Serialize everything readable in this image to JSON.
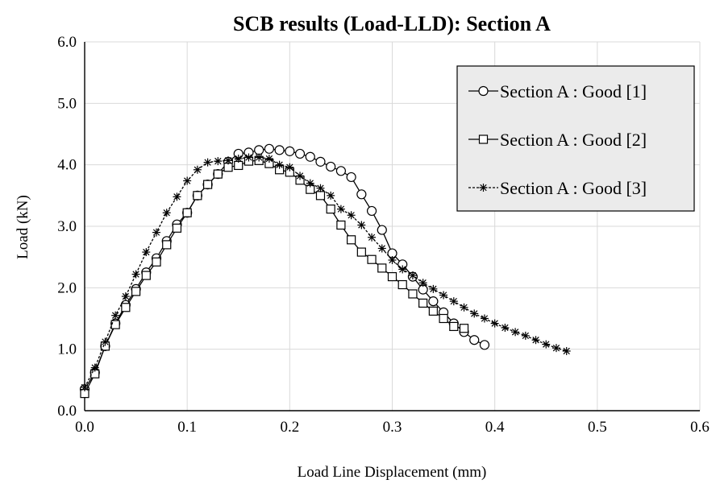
{
  "chart_data": {
    "type": "line",
    "title": "SCB results (Load-LLD): Section A",
    "xlabel": "Load Line Displacement (mm)",
    "ylabel": "Load (kN)",
    "xlim": [
      0,
      0.6
    ],
    "ylim": [
      0,
      6
    ],
    "x_ticks": [
      "0.0",
      "0.1",
      "0.2",
      "0.3",
      "0.4",
      "0.5",
      "0.6"
    ],
    "y_ticks": [
      "0.0",
      "1.0",
      "2.0",
      "3.0",
      "4.0",
      "5.0",
      "6.0"
    ],
    "x_tick_values": [
      0,
      0.1,
      0.2,
      0.3,
      0.4,
      0.5,
      0.6
    ],
    "y_tick_values": [
      0,
      1,
      2,
      3,
      4,
      5,
      6
    ],
    "grid": true,
    "legend_position": "top-right",
    "series": [
      {
        "name": "Section A : Good [1]",
        "marker": "circle",
        "line_style": "solid",
        "x": [
          0.0,
          0.01,
          0.02,
          0.03,
          0.04,
          0.05,
          0.06,
          0.07,
          0.08,
          0.09,
          0.1,
          0.11,
          0.12,
          0.13,
          0.14,
          0.15,
          0.16,
          0.17,
          0.18,
          0.19,
          0.2,
          0.21,
          0.22,
          0.23,
          0.24,
          0.25,
          0.26,
          0.27,
          0.28,
          0.29,
          0.3,
          0.31,
          0.32,
          0.33,
          0.34,
          0.35,
          0.36,
          0.37,
          0.38,
          0.39
        ],
        "y": [
          0.35,
          0.62,
          1.05,
          1.42,
          1.72,
          1.98,
          2.25,
          2.48,
          2.76,
          3.03,
          3.22,
          3.5,
          3.68,
          3.85,
          4.05,
          4.18,
          4.2,
          4.24,
          4.26,
          4.24,
          4.22,
          4.18,
          4.13,
          4.05,
          3.97,
          3.9,
          3.8,
          3.52,
          3.25,
          2.94,
          2.56,
          2.38,
          2.18,
          1.97,
          1.78,
          1.6,
          1.42,
          1.28,
          1.15,
          1.07
        ]
      },
      {
        "name": "Section A : Good [2]",
        "marker": "square",
        "line_style": "solid",
        "x": [
          0.0,
          0.01,
          0.02,
          0.03,
          0.04,
          0.05,
          0.06,
          0.07,
          0.08,
          0.09,
          0.1,
          0.11,
          0.12,
          0.13,
          0.14,
          0.15,
          0.16,
          0.17,
          0.18,
          0.19,
          0.2,
          0.21,
          0.22,
          0.23,
          0.24,
          0.25,
          0.26,
          0.27,
          0.28,
          0.29,
          0.3,
          0.31,
          0.32,
          0.33,
          0.34,
          0.35,
          0.36,
          0.37
        ],
        "y": [
          0.28,
          0.6,
          1.05,
          1.4,
          1.68,
          1.94,
          2.2,
          2.42,
          2.7,
          2.97,
          3.22,
          3.5,
          3.68,
          3.85,
          3.96,
          3.99,
          4.06,
          4.07,
          4.02,
          3.92,
          3.88,
          3.75,
          3.6,
          3.5,
          3.28,
          3.02,
          2.78,
          2.58,
          2.46,
          2.32,
          2.18,
          2.05,
          1.9,
          1.75,
          1.62,
          1.5,
          1.37,
          1.34
        ]
      },
      {
        "name": "Section A : Good [3]",
        "marker": "star",
        "line_style": "dashed",
        "x": [
          0.0,
          0.01,
          0.02,
          0.03,
          0.04,
          0.05,
          0.06,
          0.07,
          0.08,
          0.09,
          0.1,
          0.11,
          0.12,
          0.13,
          0.14,
          0.15,
          0.16,
          0.17,
          0.18,
          0.19,
          0.2,
          0.21,
          0.22,
          0.23,
          0.24,
          0.25,
          0.26,
          0.27,
          0.28,
          0.29,
          0.3,
          0.31,
          0.32,
          0.33,
          0.34,
          0.35,
          0.36,
          0.37,
          0.38,
          0.39,
          0.4,
          0.41,
          0.42,
          0.43,
          0.44,
          0.45,
          0.46,
          0.47
        ],
        "y": [
          0.38,
          0.7,
          1.12,
          1.55,
          1.86,
          2.22,
          2.58,
          2.9,
          3.22,
          3.48,
          3.74,
          3.92,
          4.04,
          4.06,
          4.07,
          4.1,
          4.12,
          4.12,
          4.1,
          4.0,
          3.96,
          3.82,
          3.7,
          3.62,
          3.5,
          3.28,
          3.18,
          3.02,
          2.82,
          2.64,
          2.45,
          2.3,
          2.2,
          2.08,
          1.98,
          1.88,
          1.78,
          1.68,
          1.58,
          1.5,
          1.42,
          1.35,
          1.28,
          1.22,
          1.15,
          1.08,
          1.02,
          0.97
        ]
      }
    ]
  }
}
